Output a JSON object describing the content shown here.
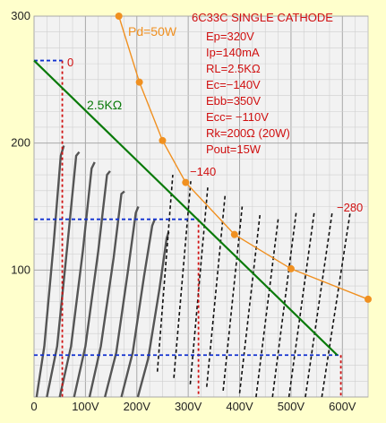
{
  "chart_data": {
    "type": "line",
    "title": "6C33C SINGLE CATHODE",
    "spec_lines": [
      "Ep=320V",
      "Ip=140mA",
      "RL=2.5KΩ",
      "Ec=−140V",
      "Ebb=350V",
      "Ecc= −110V",
      "Rk=200Ω (20W)",
      "Pout=15W"
    ],
    "x_ticks": [
      "0",
      "100V",
      "200V",
      "300V",
      "400V",
      "500V",
      "600V"
    ],
    "x_tick_values": [
      0,
      100,
      200,
      300,
      400,
      500,
      600
    ],
    "y_ticks": [
      "300",
      "200",
      "100"
    ],
    "y_tick_values": [
      300,
      200,
      100
    ],
    "xlim": [
      0,
      650
    ],
    "ylim": [
      0,
      300
    ],
    "grid": true,
    "series": [
      {
        "name": "Pd=50W",
        "color": "#f09020",
        "x": [
          165,
          205,
          250,
          295,
          390,
          500,
          650
        ],
        "y": [
          300,
          248,
          202,
          169,
          128,
          101,
          77
        ]
      },
      {
        "name": "2.5KΩ",
        "color": "#0a7a0a",
        "x": [
          0,
          590
        ],
        "y": [
          265,
          33
        ]
      }
    ],
    "plate_curves": {
      "solid": [
        {
          "x": [
            5,
            20,
            38,
            52,
            58
          ],
          "y": [
            0,
            40,
            120,
            190,
            198
          ]
        },
        {
          "x": [
            25,
            45,
            65,
            82,
            88
          ],
          "y": [
            0,
            40,
            120,
            190,
            193
          ]
        },
        {
          "x": [
            50,
            72,
            95,
            112,
            118
          ],
          "y": [
            0,
            40,
            115,
            180,
            185
          ]
        },
        {
          "x": [
            78,
            100,
            125,
            142,
            148
          ],
          "y": [
            0,
            40,
            115,
            175,
            178
          ]
        },
        {
          "x": [
            108,
            130,
            155,
            170,
            176
          ],
          "y": [
            0,
            40,
            110,
            160,
            162
          ]
        },
        {
          "x": [
            138,
            160,
            183,
            198,
            203
          ],
          "y": [
            0,
            35,
            100,
            145,
            150
          ]
        },
        {
          "x": [
            170,
            192,
            214,
            230,
            235
          ],
          "y": [
            0,
            35,
            95,
            135,
            140
          ]
        },
        {
          "x": [
            202,
            222,
            244,
            258,
            262
          ],
          "y": [
            0,
            30,
            85,
            125,
            130
          ]
        }
      ],
      "dashed_x_start": [
        240,
        272,
        304,
        336,
        368,
        400,
        432,
        464,
        496,
        528,
        560
      ],
      "dashed_x_end": [
        270,
        305,
        338,
        372,
        405,
        440,
        475,
        510,
        545,
        580,
        615
      ],
      "dashed_y_start": [
        20,
        15,
        10,
        8,
        5,
        3,
        0,
        0,
        0,
        0,
        0
      ],
      "dashed_y_end": [
        175,
        170,
        165,
        160,
        150,
        145,
        140,
        145,
        145,
        145,
        145
      ]
    },
    "grid_labels": {
      "g0": "0",
      "g140": "−140",
      "g280": "−280"
    },
    "operating_markers": {
      "vertical_x": [
        55,
        320,
        597
      ],
      "horizontal_y": [
        265,
        140,
        33
      ]
    }
  }
}
